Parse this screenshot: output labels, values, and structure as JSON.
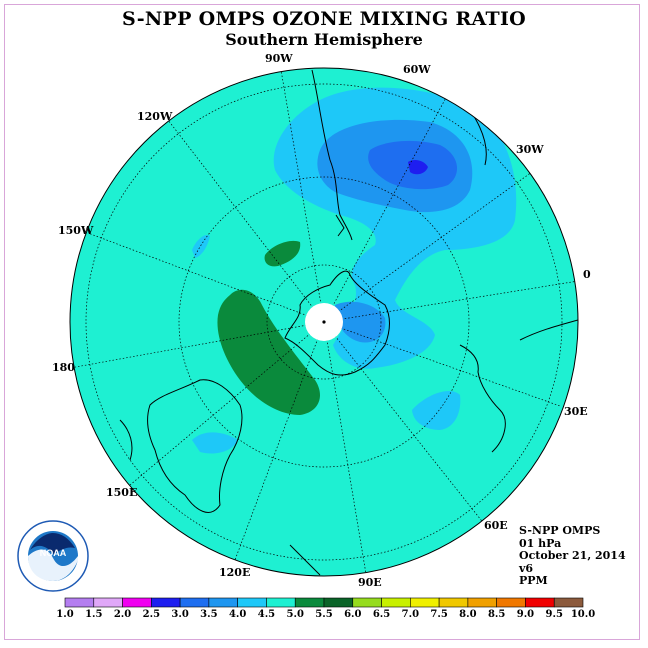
{
  "title": "S-NPP OMPS OZONE MIXING RATIO",
  "subtitle": "Southern Hemisphere",
  "map": {
    "projection": "south polar stereographic",
    "meridian_labels": [
      "90W",
      "60W",
      "30W",
      "0",
      "30E",
      "60E",
      "90E",
      "120E",
      "150E",
      "180",
      "150W",
      "120W"
    ],
    "background_color": "#1ef0d2",
    "land_outline_color": "#000000"
  },
  "info": {
    "instrument": "S-NPP OMPS",
    "level": "01 hPa",
    "date": "October 21, 2014",
    "version": "v6",
    "units": "PPM"
  },
  "colorbar": {
    "ticks": [
      "1.0",
      "1.5",
      "2.0",
      "2.5",
      "3.0",
      "3.5",
      "4.0",
      "4.5",
      "5.0",
      "5.5",
      "6.0",
      "6.5",
      "7.0",
      "7.5",
      "8.0",
      "8.5",
      "9.0",
      "9.5",
      "10.0"
    ],
    "colors": [
      "#b47ef0",
      "#e0a8f8",
      "#f000f0",
      "#1e1ef0",
      "#1e6ef0",
      "#1e96f0",
      "#1ec8f8",
      "#1ef0d2",
      "#0a8a3c",
      "#0a6428",
      "#96dc1e",
      "#c8f000",
      "#f0f000",
      "#f0c800",
      "#f0a000",
      "#f07800",
      "#f00000",
      "#8c5a3c"
    ]
  },
  "logo": {
    "text": "NOAA",
    "icon": "noaa-logo"
  }
}
